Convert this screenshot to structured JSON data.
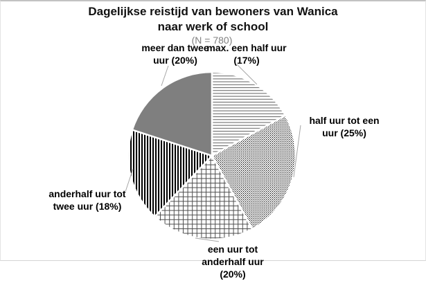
{
  "chart_data": {
    "type": "pie",
    "title": "Dagelijkse reistijd van bewoners van Wanica naar werk of school",
    "subtitle": "(N = 780)",
    "categories": [
      "max. een half uur",
      "half uur tot een uur",
      "een uur tot anderhalf uur",
      "anderhalf uur tot twee uur",
      "meer dan twee uur"
    ],
    "values": [
      17,
      25,
      20,
      18,
      20
    ],
    "unit": "%",
    "start_angle_deg": 0,
    "direction": "clockwise",
    "legend": "none",
    "labels_style": "callouts-outside",
    "patterns": [
      "horizontal-lines",
      "dots",
      "grid",
      "vertical-lines",
      "solid-gray"
    ],
    "pattern_ink_color": "#000000",
    "gray_fill": "#7f7f7f",
    "leader_line_color": "#a6a6a6"
  },
  "title_block": {
    "title": "Dagelijkse reistijd van bewoners van Wanica\nnaar werk of school",
    "subtitle": "(N = 780)"
  },
  "callouts": {
    "more_than_two": "meer dan twee\nuur (20%)",
    "max_half": "max. een half uur\n(17%)",
    "half_to_one": "half uur tot een\nuur (25%)",
    "one_to_onehalf": "een uur tot\nanderhalf uur\n(20%)",
    "onehalf_to_two": "anderhalf uur tot\ntwee uur (18%)"
  }
}
